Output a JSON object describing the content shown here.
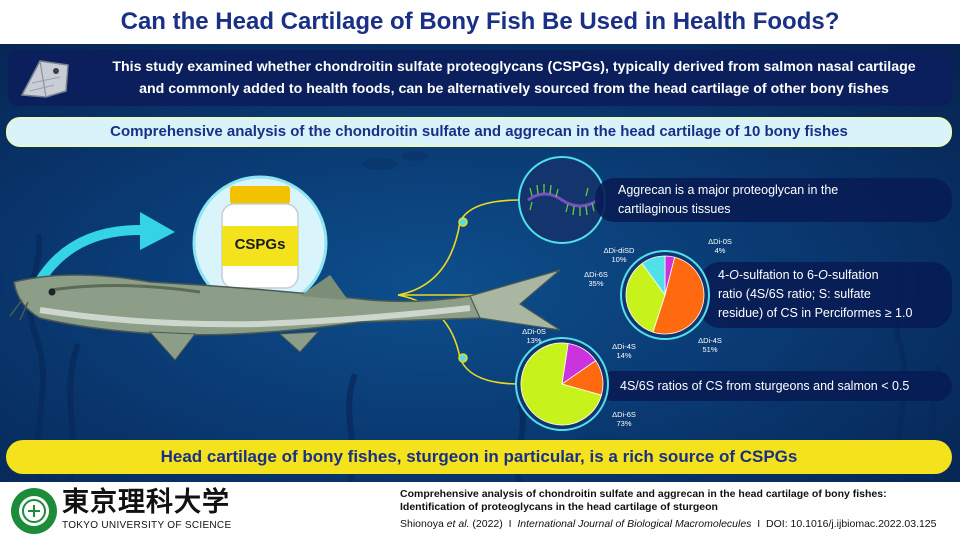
{
  "title": "Can the Head Cartilage of Bony Fish Be Used in Health Foods?",
  "intro": {
    "line1": "This study examined whether chondroitin sulfate proteoglycans (CSPGs), typically derived from salmon nasal cartilage",
    "line2": "and commonly added to health foods, can be alternatively sourced from the head cartilage of other bony fishes"
  },
  "banner": "Comprehensive analysis of the chondroitin sulfate and aggrecan in the head cartilage of 10 bony fishes",
  "bottle_label": "CSPGs",
  "findings": {
    "aggrecan": {
      "line1": "Aggrecan is a major proteoglycan in the",
      "line2": "cartilaginous tissues"
    },
    "perciformes": {
      "line1a": "4-",
      "line1b": "O",
      "line1c": "-sulfation to 6-",
      "line1d": "O",
      "line1e": "-sulfation",
      "line2": "ratio (4S/6S ratio; S: sulfate",
      "line3": "residue) of CS in Perciformes ≥ 1.0"
    },
    "sturgeon": "4S/6S ratios of CS from sturgeons and salmon < 0.5"
  },
  "chart_data": [
    {
      "type": "pie",
      "slices": [
        {
          "label": "ΔDi-0S",
          "value": 4,
          "color": "#cc33dd"
        },
        {
          "label": "ΔDi-4S",
          "value": 51,
          "color": "#ff6a10"
        },
        {
          "label": "ΔDi-6S",
          "value": 35,
          "color": "#c7f21c"
        },
        {
          "label": "ΔDi-diSD",
          "value": 10,
          "color": "#4fe0ea"
        }
      ],
      "labels": {
        "di0s": {
          "name": "ΔDi-0S",
          "pct": "4%"
        },
        "disd": {
          "name": "ΔDi-diSD",
          "pct": "10%"
        },
        "di6s": {
          "name": "ΔDi-6S",
          "pct": "35%"
        },
        "di4s": {
          "name": "ΔDi-4S",
          "pct": "51%"
        }
      }
    },
    {
      "type": "pie",
      "slices": [
        {
          "label": "ΔDi-0S",
          "value": 13,
          "color": "#cc33dd"
        },
        {
          "label": "ΔDi-4S",
          "value": 14,
          "color": "#ff6a10"
        },
        {
          "label": "ΔDi-6S",
          "value": 73,
          "color": "#c7f21c"
        }
      ],
      "labels": {
        "di0s": {
          "name": "ΔDi-0S",
          "pct": "13%"
        },
        "di4s": {
          "name": "ΔDi-4S",
          "pct": "14%"
        },
        "di6s": {
          "name": "ΔDi-6S",
          "pct": "73%"
        }
      }
    }
  ],
  "conclusion": "Head cartilage of bony fishes, sturgeon in particular, is a rich source of CSPGs",
  "footer": {
    "logo_jp": "東京理科大学",
    "logo_en": "TOKYO UNIVERSITY OF SCIENCE",
    "seal_text": "TOKYO UNIVERSITY OF SCIENCE · since 1881 ·",
    "ref_title_line1": "Comprehensive analysis of chondroitin sulfate and aggrecan in the head cartilage of bony fishes:",
    "ref_title_line2": "Identification of proteoglycans in the head cartilage of sturgeon",
    "authors_a": "Shionoya",
    "authors_b": "et al.",
    "year": "(2022)",
    "sep": "I",
    "journal": "International Journal of Biological Macromolecules",
    "doi": "DOI: 10.1016/j.ijbiomac.2022.03.125"
  },
  "colors": {
    "title": "#1a2f86",
    "accent_yellow": "#f4e21c",
    "dark_navy": "#0a1f5c"
  }
}
